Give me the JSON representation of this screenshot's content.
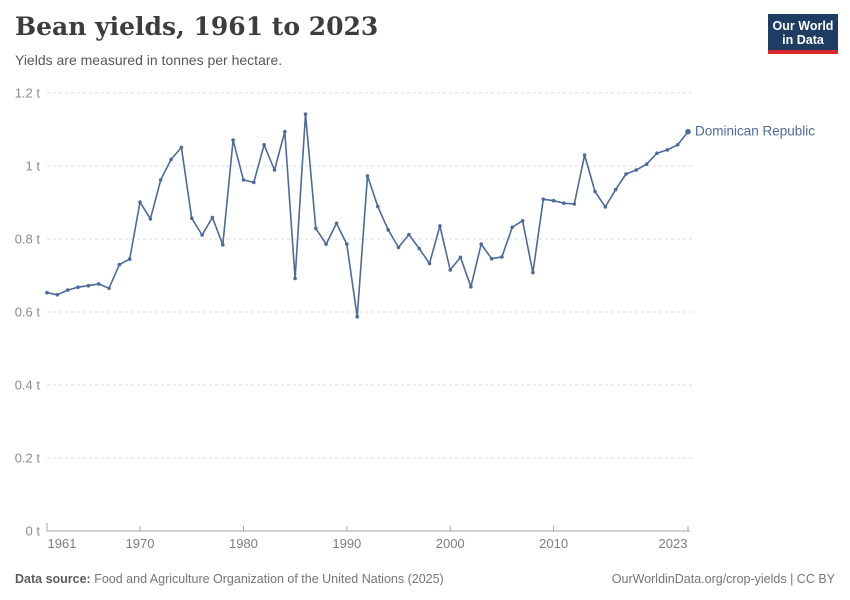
{
  "header": {
    "title": "Bean yields, 1961 to 2023",
    "subtitle": "Yields are measured in tonnes per hectare.",
    "logo": {
      "line1": "Our World",
      "line2": "in Data",
      "bg_color": "#1d3d63",
      "accent_color": "#d8272e"
    }
  },
  "chart_data": {
    "type": "line",
    "title": "Bean yields, 1961 to 2023",
    "ylabel": "tonnes per hectare",
    "xlabel": "",
    "unit": "t",
    "grid": true,
    "legend_position": "end-of-line-label",
    "xlim": [
      1961,
      2023
    ],
    "ylim": [
      0,
      1.2
    ],
    "x_ticks": [
      1961,
      1970,
      1980,
      1990,
      2000,
      2010,
      2023
    ],
    "y_ticks": [
      {
        "value": 0,
        "label": "0 t"
      },
      {
        "value": 0.2,
        "label": "0.2 t"
      },
      {
        "value": 0.4,
        "label": "0.4 t"
      },
      {
        "value": 0.6,
        "label": "0.6 t"
      },
      {
        "value": 0.8,
        "label": "0.8 t"
      },
      {
        "value": 1,
        "label": "1 t"
      },
      {
        "value": 1.2,
        "label": "1.2 t"
      }
    ],
    "series": [
      {
        "name": "Dominican Republic",
        "color": "#4c6a9c",
        "x": [
          1961,
          1962,
          1963,
          1964,
          1965,
          1966,
          1967,
          1968,
          1969,
          1970,
          1971,
          1972,
          1973,
          1974,
          1975,
          1976,
          1977,
          1978,
          1979,
          1980,
          1981,
          1982,
          1983,
          1984,
          1985,
          1986,
          1987,
          1988,
          1989,
          1990,
          1991,
          1992,
          1993,
          1994,
          1995,
          1996,
          1997,
          1998,
          1999,
          2000,
          2001,
          2002,
          2003,
          2004,
          2005,
          2006,
          2007,
          2008,
          2009,
          2010,
          2011,
          2012,
          2013,
          2014,
          2015,
          2016,
          2017,
          2018,
          2019,
          2020,
          2021,
          2022,
          2023
        ],
        "values": [
          0.653,
          0.647,
          0.66,
          0.668,
          0.672,
          0.677,
          0.665,
          0.73,
          0.745,
          0.901,
          0.855,
          0.962,
          1.018,
          1.051,
          0.857,
          0.811,
          0.859,
          0.784,
          1.071,
          0.962,
          0.955,
          1.058,
          0.989,
          1.094,
          0.692,
          1.142,
          0.829,
          0.786,
          0.843,
          0.786,
          0.587,
          0.973,
          0.889,
          0.825,
          0.777,
          0.812,
          0.774,
          0.733,
          0.836,
          0.715,
          0.75,
          0.669,
          0.786,
          0.746,
          0.751,
          0.832,
          0.85,
          0.708,
          0.909,
          0.905,
          0.898,
          0.896,
          1.03,
          0.93,
          0.888,
          0.935,
          0.978,
          0.989,
          1.005,
          1.035,
          1.044,
          1.058,
          1.094
        ]
      }
    ]
  },
  "footer": {
    "source_label": "Data source:",
    "source_text": " Food and Agriculture Organization of the United Nations (2025)",
    "credit": "OurWorldinData.org/crop-yields | CC BY"
  }
}
